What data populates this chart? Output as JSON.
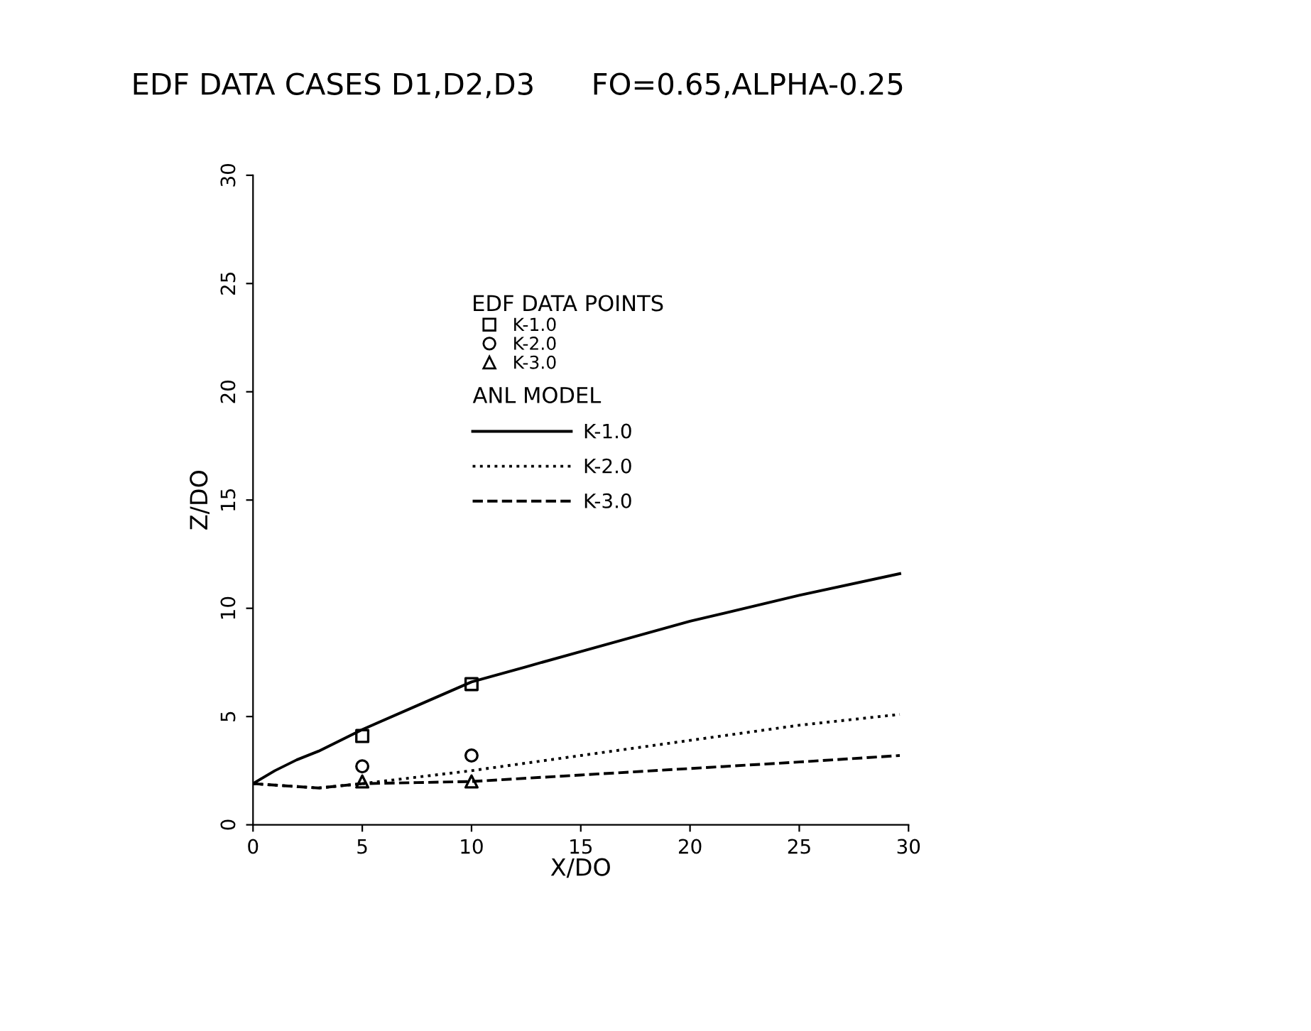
{
  "chart_data": {
    "type": "line",
    "title": "EDF DATA CASES D1,D2,D3      FO=0.65,ALPHA-0.25",
    "xlabel": "X/DO",
    "ylabel": "Z/DO",
    "legend_title": "EDF DATA POINTS",
    "annotations": [
      "ANL MODEL"
    ],
    "xlim": [
      0,
      30
    ],
    "ylim": [
      0,
      30
    ],
    "xticks": [
      0,
      5,
      10,
      15,
      20,
      25,
      30
    ],
    "yticks": [
      0,
      5,
      10,
      15,
      20,
      25,
      30
    ],
    "grid": false,
    "legend": "top",
    "series": [
      {
        "type": "scatter",
        "name": "K-1.0",
        "color": "#000000",
        "marker": "square",
        "x": [
          5,
          10
        ],
        "values": [
          4.1,
          6.5
        ]
      },
      {
        "type": "scatter",
        "name": "K-2.0",
        "color": "#000000",
        "marker": "circle",
        "x": [
          5,
          10
        ],
        "values": [
          2.7,
          3.2
        ]
      },
      {
        "type": "scatter",
        "name": "K-3.0",
        "color": "#000000",
        "marker": "triangle",
        "x": [
          5,
          10
        ],
        "values": [
          2.0,
          2.0
        ]
      },
      {
        "name": "K-1.0",
        "color": "#000000",
        "line_style": "solid",
        "x": [
          0,
          1,
          2,
          3,
          5,
          7.5,
          10,
          12.5,
          15,
          20,
          25,
          29.6
        ],
        "values": [
          1.9,
          2.5,
          3.0,
          3.4,
          4.4,
          5.5,
          6.6,
          7.3,
          8.0,
          9.4,
          10.6,
          11.6
        ]
      },
      {
        "name": "K-2.0",
        "color": "#000000",
        "line_style": "dotted",
        "x": [
          0,
          1.5,
          3,
          5,
          7.5,
          10,
          15,
          20,
          25,
          29.6
        ],
        "values": [
          1.9,
          1.8,
          1.7,
          1.9,
          2.2,
          2.5,
          3.2,
          3.9,
          4.6,
          5.1
        ]
      },
      {
        "name": "K-3.0",
        "color": "#000000",
        "line_style": "dashed",
        "x": [
          0,
          1.5,
          3,
          5,
          7.5,
          10,
          15,
          20,
          25,
          29.6
        ],
        "values": [
          1.9,
          1.8,
          1.7,
          1.9,
          1.95,
          2.0,
          2.3,
          2.6,
          2.9,
          3.2
        ]
      }
    ]
  }
}
